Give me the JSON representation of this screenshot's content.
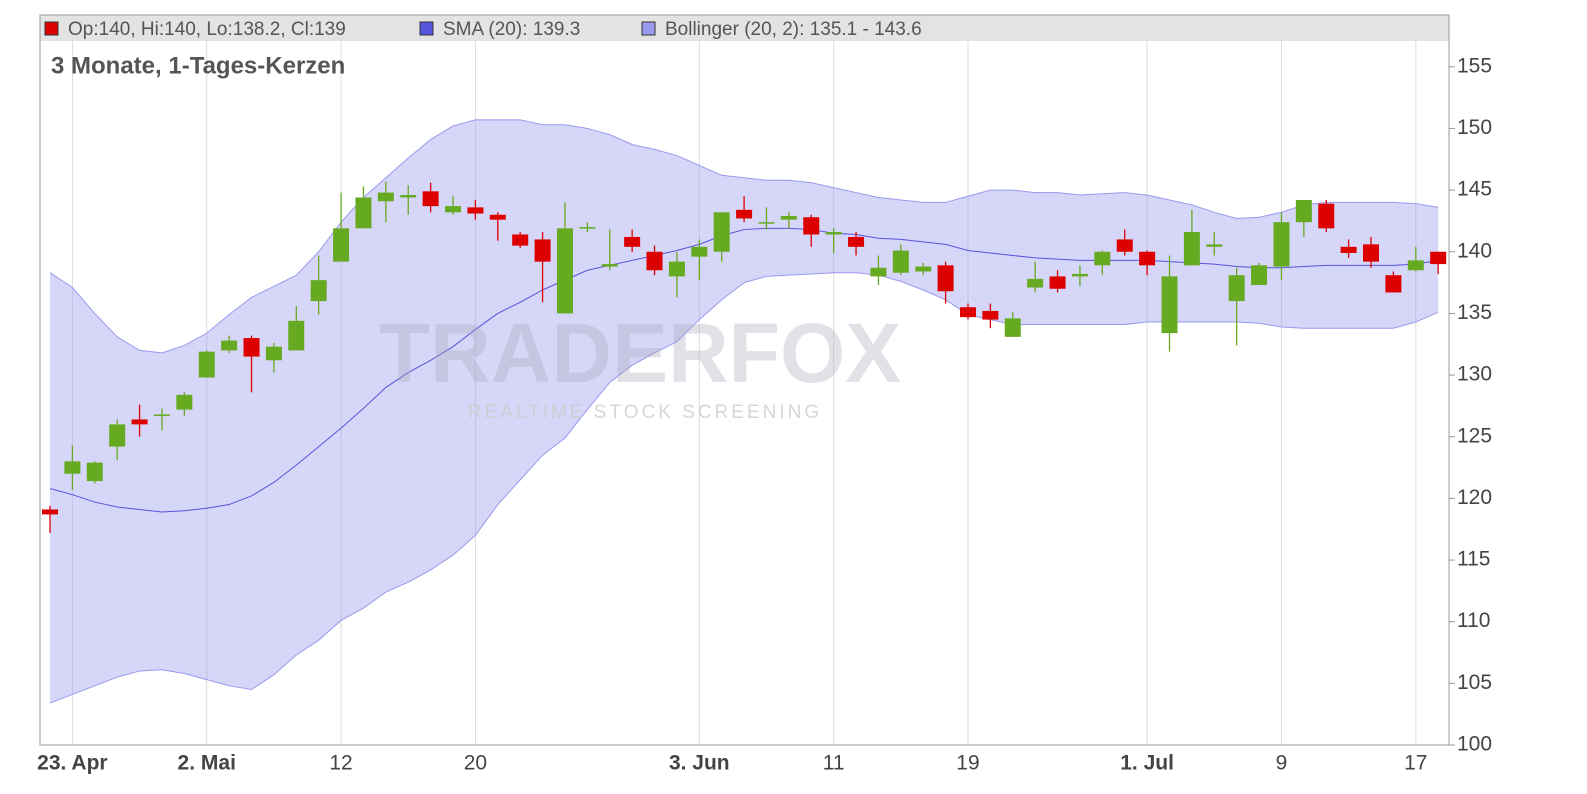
{
  "chart_data": {
    "type": "candlestick",
    "title": "3 Monate, 1-Tages-Kerzen",
    "watermark": "TRADERFOX",
    "watermark_sub": "REALTIME STOCK SCREENING",
    "ohlc_label": "Op:140, Hi:140, Lo:138.2, Cl:139",
    "up_color": "#66aa22",
    "down_color": "#dd0000",
    "categories": [
      null,
      "23. Apr",
      null,
      null,
      null,
      null,
      null,
      "2. Mai",
      null,
      null,
      null,
      null,
      null,
      "12",
      null,
      null,
      null,
      null,
      null,
      "20",
      null,
      null,
      null,
      null,
      null,
      null,
      null,
      null,
      null,
      "3. Jun",
      null,
      null,
      null,
      null,
      null,
      "11",
      null,
      null,
      null,
      null,
      null,
      "19",
      null,
      null,
      null,
      null,
      null,
      null,
      null,
      "1. Jul",
      null,
      null,
      null,
      null,
      null,
      "9",
      null,
      null,
      null,
      null,
      null,
      "17",
      null
    ],
    "open": [
      119.1,
      122.0,
      121.4,
      124.2,
      126.4,
      126.7,
      127.2,
      129.8,
      132.0,
      133.0,
      131.2,
      132.0,
      136.0,
      139.2,
      141.9,
      144.1,
      144.4,
      144.9,
      143.2,
      143.6,
      143.0,
      141.4,
      141.0,
      135.0,
      141.9,
      138.8,
      141.2,
      140.0,
      138.0,
      139.6,
      140.0,
      143.4,
      142.3,
      142.6,
      142.8,
      141.4,
      141.2,
      138.0,
      138.3,
      138.4,
      138.9,
      135.5,
      135.2,
      133.1,
      137.1,
      138.0,
      138.0,
      138.9,
      141.0,
      140.0,
      133.4,
      138.9,
      140.4,
      136.0,
      137.3,
      138.8,
      142.4,
      143.9,
      140.4,
      140.6,
      138.1,
      138.5,
      140
    ],
    "high": [
      119.4,
      124.3,
      123.0,
      126.4,
      127.6,
      127.3,
      128.6,
      132.0,
      133.2,
      133.2,
      132.6,
      135.6,
      139.7,
      144.8,
      145.3,
      145.7,
      145.4,
      145.6,
      144.5,
      144.2,
      143.2,
      141.6,
      141.6,
      144.0,
      142.4,
      141.8,
      141.8,
      140.5,
      140.0,
      141.0,
      143.2,
      144.5,
      143.6,
      143.2,
      143.0,
      141.9,
      141.6,
      139.7,
      140.6,
      139.1,
      139.2,
      135.8,
      135.8,
      135.1,
      139.2,
      138.5,
      138.9,
      140.1,
      141.8,
      140.1,
      139.7,
      143.4,
      141.6,
      138.7,
      139.1,
      143.2,
      144.2,
      144.2,
      141.0,
      141.2,
      138.4,
      140.4,
      140
    ],
    "low": [
      117.2,
      120.7,
      121.2,
      123.1,
      125.0,
      125.5,
      126.7,
      129.8,
      131.8,
      128.6,
      130.2,
      132.0,
      134.9,
      139.2,
      141.9,
      142.4,
      143.0,
      143.2,
      143.0,
      142.6,
      140.9,
      140.3,
      135.9,
      135.0,
      141.6,
      138.5,
      140.0,
      138.1,
      136.3,
      137.7,
      139.2,
      142.4,
      141.8,
      141.9,
      140.4,
      139.9,
      139.7,
      137.3,
      138.1,
      138.1,
      135.8,
      134.5,
      133.8,
      133.1,
      136.7,
      136.7,
      137.2,
      138.1,
      139.7,
      138.1,
      131.9,
      138.9,
      139.7,
      132.4,
      137.3,
      137.7,
      141.2,
      141.6,
      139.5,
      138.7,
      136.7,
      138.4,
      138.2
    ],
    "close": [
      118.7,
      123.0,
      122.9,
      126.0,
      126.0,
      126.8,
      128.4,
      131.9,
      132.8,
      131.5,
      132.3,
      134.4,
      137.7,
      141.9,
      144.4,
      144.8,
      144.6,
      143.7,
      143.7,
      143.1,
      142.6,
      140.5,
      139.2,
      141.9,
      142.0,
      139.0,
      140.4,
      138.5,
      139.2,
      140.4,
      143.2,
      142.7,
      142.4,
      142.9,
      141.4,
      141.6,
      140.4,
      138.7,
      140.1,
      138.8,
      136.8,
      134.7,
      134.5,
      134.6,
      137.8,
      137.0,
      138.2,
      140.0,
      140.0,
      138.9,
      138.0,
      141.6,
      140.6,
      138.1,
      138.9,
      142.4,
      144.2,
      141.9,
      139.9,
      139.2,
      136.7,
      139.3,
      139
    ],
    "series": [
      {
        "name": "SMA (20): 139.3",
        "color": "#5555dd",
        "values": [
          120.8,
          120.3,
          119.7,
          119.3,
          119.1,
          118.9,
          119.0,
          119.2,
          119.5,
          120.2,
          121.3,
          122.7,
          124.2,
          125.7,
          127.3,
          129.0,
          130.2,
          131.2,
          132.3,
          133.7,
          135.0,
          135.9,
          136.9,
          137.7,
          138.5,
          138.9,
          139.3,
          139.7,
          140.1,
          140.6,
          141.3,
          141.8,
          141.9,
          141.9,
          141.8,
          141.5,
          141.4,
          141.1,
          141.0,
          140.8,
          140.6,
          140.1,
          139.9,
          139.7,
          139.5,
          139.4,
          139.3,
          139.3,
          139.3,
          139.3,
          139.2,
          139.1,
          139.0,
          138.8,
          138.7,
          138.7,
          138.8,
          138.9,
          138.9,
          138.9,
          138.9,
          139.0,
          139.3
        ]
      },
      {
        "name": "Bollinger (20, 2): 135.1 - 143.6",
        "color": "#9999ee",
        "upper": [
          138.3,
          137.1,
          135.0,
          133.1,
          132.0,
          131.8,
          132.4,
          133.4,
          134.9,
          136.3,
          137.2,
          138.1,
          140.0,
          142.4,
          144.4,
          146.0,
          147.6,
          149.1,
          150.2,
          150.7,
          150.7,
          150.7,
          150.3,
          150.3,
          150.0,
          149.5,
          148.7,
          148.3,
          147.8,
          147.0,
          146.2,
          146.0,
          145.8,
          145.8,
          145.6,
          145.2,
          144.8,
          144.4,
          144.2,
          144.0,
          144.0,
          144.5,
          145.0,
          145.0,
          144.8,
          144.8,
          144.6,
          144.7,
          144.8,
          144.6,
          144.2,
          143.8,
          143.2,
          142.7,
          142.8,
          143.2,
          143.8,
          144.0,
          144.0,
          144.0,
          144.0,
          143.9,
          143.6
        ],
        "lower": [
          103.4,
          104.1,
          104.8,
          105.5,
          106.0,
          106.1,
          105.8,
          105.3,
          104.8,
          104.5,
          105.7,
          107.3,
          108.5,
          110.1,
          111.1,
          112.4,
          113.2,
          114.2,
          115.4,
          117.0,
          119.5,
          121.5,
          123.5,
          124.9,
          127.2,
          129.4,
          130.8,
          131.8,
          132.7,
          134.5,
          136.1,
          137.5,
          138.0,
          138.1,
          138.2,
          138.3,
          138.3,
          138.1,
          137.6,
          136.9,
          136.1,
          134.9,
          134.5,
          134.1,
          134.1,
          134.1,
          134.1,
          134.1,
          134.1,
          134.3,
          134.3,
          134.3,
          134.3,
          134.3,
          134.2,
          133.9,
          133.8,
          133.8,
          133.8,
          133.8,
          133.8,
          134.3,
          135.1
        ]
      }
    ],
    "ylim": [
      100,
      159.2
    ],
    "yticks": [
      100,
      105,
      110,
      115,
      120,
      125,
      130,
      135,
      140,
      145,
      150,
      155
    ],
    "grid": true
  }
}
